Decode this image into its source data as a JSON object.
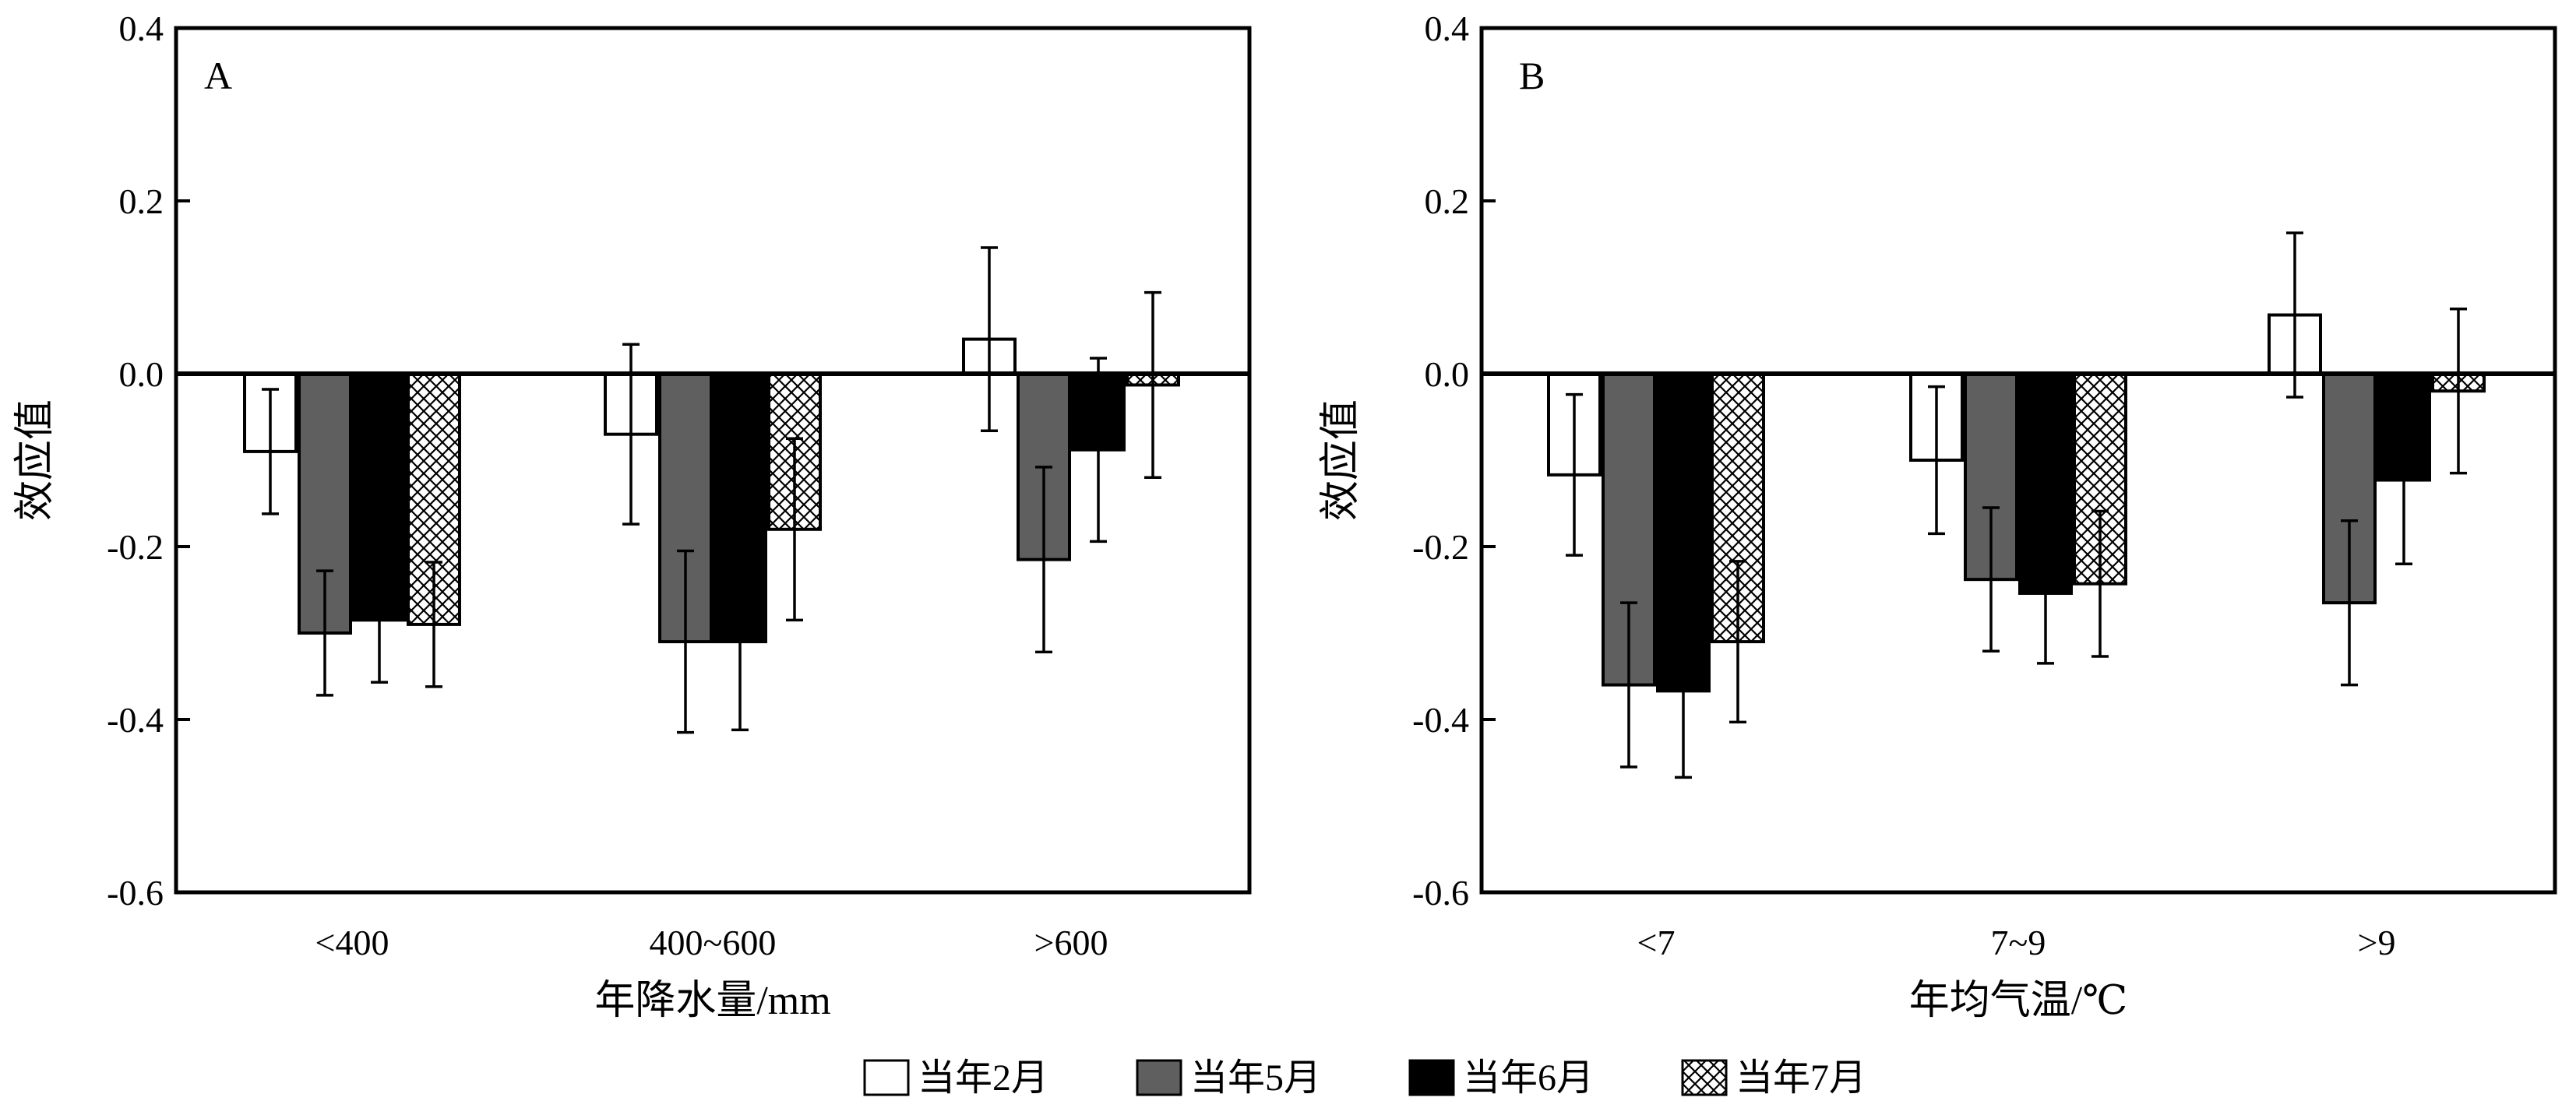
{
  "chart_data": [
    {
      "type": "bar",
      "panel_label": "A",
      "xlabel": "年降水量/mm",
      "ylabel": "效应值",
      "ylim": [
        -0.6,
        0.4
      ],
      "yticks": [
        "0.4",
        "0.2",
        "0.0",
        "-0.2",
        "-0.4",
        "-0.6"
      ],
      "categories": [
        "<400",
        "400~600",
        ">600"
      ],
      "series": [
        {
          "name": "当年2月",
          "values": [
            -0.09,
            -0.07,
            0.04
          ],
          "error": [
            0.072,
            0.104,
            0.106
          ]
        },
        {
          "name": "当年5月",
          "values": [
            -0.3,
            -0.31,
            -0.215
          ],
          "error": [
            0.072,
            0.105,
            0.107
          ]
        },
        {
          "name": "当年6月",
          "values": [
            -0.285,
            -0.31,
            -0.088
          ],
          "error": [
            0.072,
            0.102,
            0.106
          ]
        },
        {
          "name": "当年7月",
          "values": [
            -0.29,
            -0.18,
            -0.013
          ],
          "error": [
            0.072,
            0.105,
            0.107
          ]
        }
      ]
    },
    {
      "type": "bar",
      "panel_label": "B",
      "xlabel": "年均气温/℃",
      "ylabel": "效应值",
      "ylim": [
        -0.6,
        0.4
      ],
      "yticks": [
        "0.4",
        "0.2",
        "0.0",
        "-0.2",
        "-0.4",
        "-0.6"
      ],
      "categories": [
        "<7",
        "7~9",
        ">9"
      ],
      "series": [
        {
          "name": "当年2月",
          "values": [
            -0.117,
            -0.1,
            0.068
          ],
          "error": [
            0.093,
            0.085,
            0.095
          ]
        },
        {
          "name": "当年5月",
          "values": [
            -0.36,
            -0.238,
            -0.265
          ],
          "error": [
            0.095,
            0.083,
            0.095
          ]
        },
        {
          "name": "当年6月",
          "values": [
            -0.367,
            -0.254,
            -0.123
          ],
          "error": [
            0.1,
            0.081,
            0.097
          ]
        },
        {
          "name": "当年7月",
          "values": [
            -0.31,
            -0.243,
            -0.02
          ],
          "error": [
            0.093,
            0.084,
            0.095
          ]
        }
      ]
    }
  ],
  "legend": {
    "items": [
      {
        "label": "当年2月",
        "style": "white"
      },
      {
        "label": "当年5月",
        "style": "gray"
      },
      {
        "label": "当年6月",
        "style": "black"
      },
      {
        "label": "当年7月",
        "style": "crosshatch"
      }
    ]
  },
  "colors": {
    "white": "#ffffff",
    "gray": "#5f5f5f",
    "black": "#000000",
    "axis": "#000000"
  }
}
